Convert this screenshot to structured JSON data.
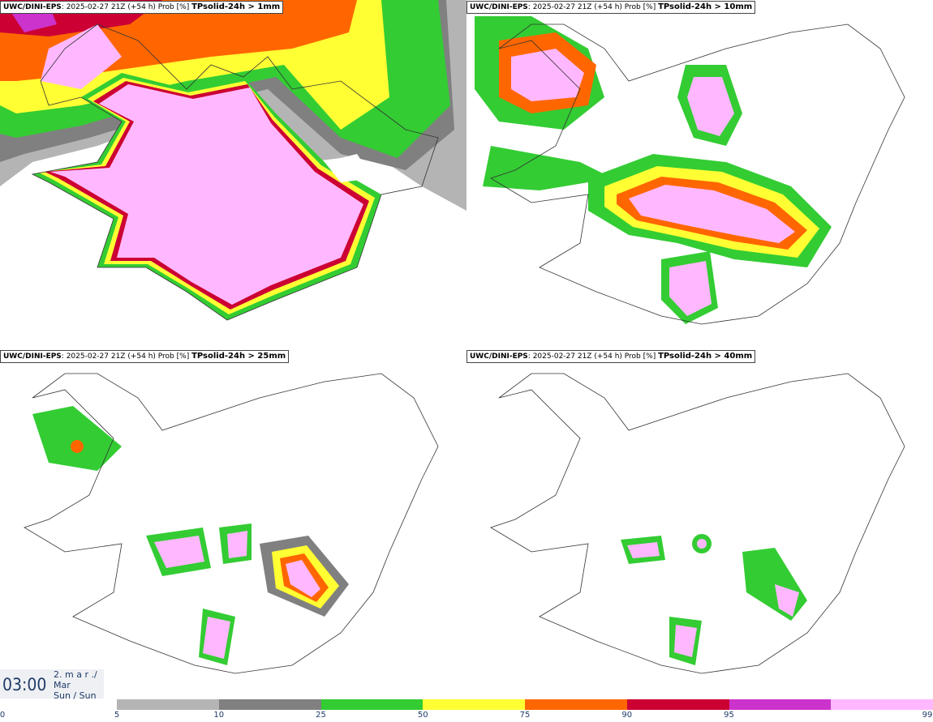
{
  "panels": [
    {
      "model": "UWC/DINI-EPS",
      "meta": ": 2025-02-27 21Z (+54 h) Prob [%]",
      "variable": "TPsolid-24h > 1mm"
    },
    {
      "model": "UWC/DINI-EPS",
      "meta": ": 2025-02-27 21Z (+54 h) Prob [%]",
      "variable": "TPsolid-24h > 10mm"
    },
    {
      "model": "UWC/DINI-EPS",
      "meta": ": 2025-02-27 21Z (+54 h) Prob [%]",
      "variable": "TPsolid-24h > 25mm"
    },
    {
      "model": "UWC/DINI-EPS",
      "meta": ": 2025-02-27 21Z (+54 h) Prob [%]",
      "variable": "TPsolid-24h > 40mm"
    }
  ],
  "valid_time": {
    "time": "03:00",
    "date_line1": "2. m a r ./",
    "date_line2": "Mar",
    "day_line": "Sun / Sun"
  },
  "colorbar": {
    "ticks": [
      "0",
      "5",
      "10",
      "25",
      "50",
      "75",
      "90",
      "95",
      "99"
    ],
    "colors": [
      "#b4b4b4",
      "#808080",
      "#33cc33",
      "#ffff33",
      "#ff6600",
      "#cc0033",
      "#cc33cc",
      "#ffb8ff"
    ]
  }
}
